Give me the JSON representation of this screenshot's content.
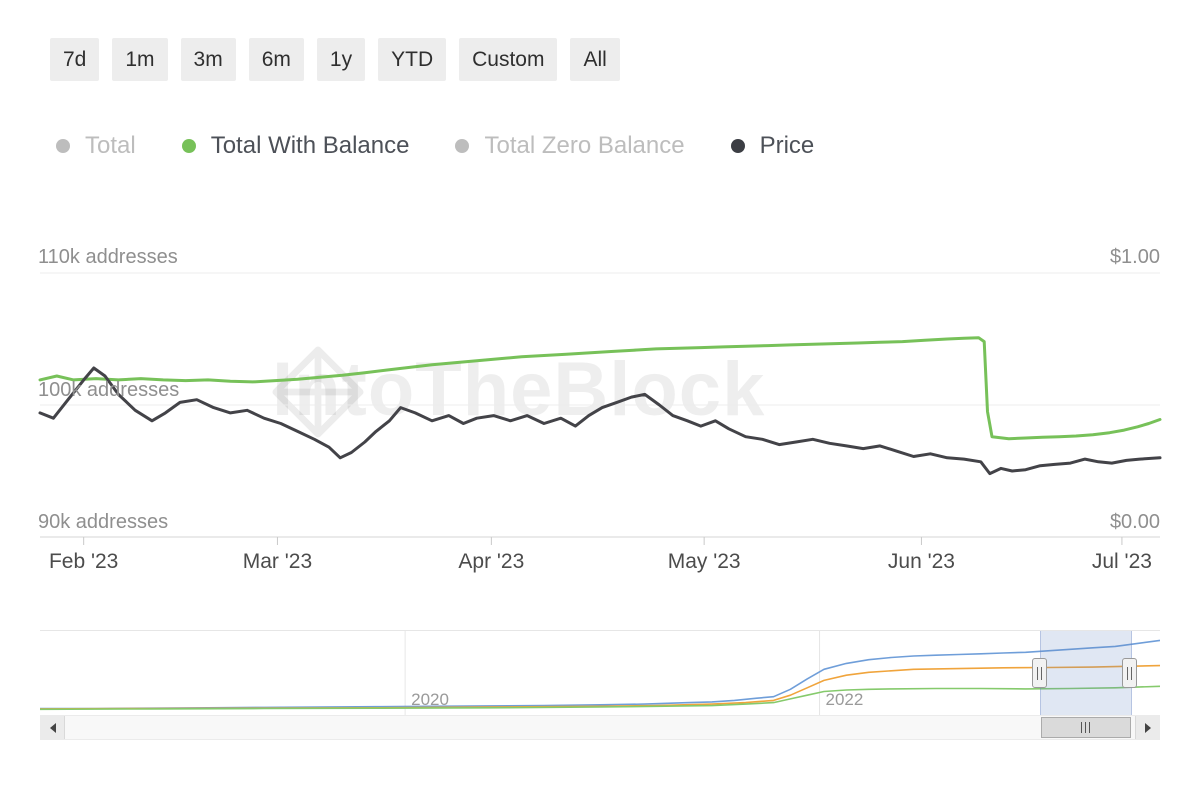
{
  "range_buttons": [
    "7d",
    "1m",
    "3m",
    "6m",
    "1y",
    "YTD",
    "Custom",
    "All"
  ],
  "legend": {
    "items": [
      {
        "label": "Total",
        "color": "#bdbdbd",
        "text_color": "#bdbdbd",
        "active": false
      },
      {
        "label": "Total With Balance",
        "color": "#77c159",
        "text_color": "#4d5158",
        "active": true
      },
      {
        "label": "Total Zero Balance",
        "color": "#bdbdbd",
        "text_color": "#bdbdbd",
        "active": false
      },
      {
        "label": "Price",
        "color": "#3c3e44",
        "text_color": "#4d5158",
        "active": true
      }
    ]
  },
  "watermark": {
    "text": "IntoTheBlock"
  },
  "chart_data": [
    {
      "type": "line",
      "x_axis": {
        "labels": [
          "Feb '23",
          "Mar '23",
          "Apr '23",
          "May '23",
          "Jun '23",
          "Jul '23"
        ],
        "tick_pos": [
          0.039,
          0.212,
          0.403,
          0.593,
          0.787,
          0.966
        ]
      },
      "y_axis_left": {
        "labels": [
          "110k addresses",
          "100k addresses",
          "90k addresses"
        ],
        "range": [
          90,
          110
        ],
        "unit": "k addresses"
      },
      "y_axis_right": {
        "labels": [
          "$1.00",
          "$0.00"
        ],
        "range": [
          0,
          1
        ],
        "unit": "USD"
      },
      "grid": "horizontal",
      "legend_position": "top",
      "series": [
        {
          "name": "Total With Balance",
          "color": "#77c159",
          "axis": "left",
          "unit": "k addresses",
          "points": [
            [
              0,
              101.9
            ],
            [
              0.015,
              102.2
            ],
            [
              0.03,
              101.9
            ],
            [
              0.05,
              102.0
            ],
            [
              0.07,
              101.9
            ],
            [
              0.09,
              102.0
            ],
            [
              0.11,
              101.9
            ],
            [
              0.13,
              101.85
            ],
            [
              0.15,
              101.9
            ],
            [
              0.17,
              101.8
            ],
            [
              0.19,
              101.75
            ],
            [
              0.21,
              101.85
            ],
            [
              0.23,
              101.95
            ],
            [
              0.25,
              102.1
            ],
            [
              0.27,
              102.25
            ],
            [
              0.29,
              102.45
            ],
            [
              0.31,
              102.65
            ],
            [
              0.33,
              102.85
            ],
            [
              0.35,
              103.05
            ],
            [
              0.37,
              103.2
            ],
            [
              0.39,
              103.35
            ],
            [
              0.41,
              103.5
            ],
            [
              0.43,
              103.65
            ],
            [
              0.45,
              103.75
            ],
            [
              0.47,
              103.85
            ],
            [
              0.49,
              103.95
            ],
            [
              0.51,
              104.05
            ],
            [
              0.53,
              104.15
            ],
            [
              0.55,
              104.25
            ],
            [
              0.57,
              104.3
            ],
            [
              0.59,
              104.35
            ],
            [
              0.61,
              104.4
            ],
            [
              0.63,
              104.45
            ],
            [
              0.65,
              104.5
            ],
            [
              0.67,
              104.55
            ],
            [
              0.69,
              104.6
            ],
            [
              0.71,
              104.65
            ],
            [
              0.73,
              104.7
            ],
            [
              0.75,
              104.75
            ],
            [
              0.77,
              104.8
            ],
            [
              0.79,
              104.9
            ],
            [
              0.81,
              105.0
            ],
            [
              0.825,
              105.05
            ],
            [
              0.838,
              105.1
            ],
            [
              0.843,
              104.8
            ],
            [
              0.846,
              99.5
            ],
            [
              0.85,
              97.6
            ],
            [
              0.865,
              97.45
            ],
            [
              0.88,
              97.5
            ],
            [
              0.895,
              97.55
            ],
            [
              0.91,
              97.6
            ],
            [
              0.925,
              97.65
            ],
            [
              0.94,
              97.75
            ],
            [
              0.955,
              97.9
            ],
            [
              0.968,
              98.1
            ],
            [
              0.98,
              98.35
            ],
            [
              0.99,
              98.6
            ],
            [
              1,
              98.9
            ]
          ]
        },
        {
          "name": "Price",
          "color": "#434348",
          "axis": "right",
          "unit": "USD",
          "points": [
            [
              0,
              0.47
            ],
            [
              0.012,
              0.45
            ],
            [
              0.025,
              0.52
            ],
            [
              0.04,
              0.6
            ],
            [
              0.048,
              0.64
            ],
            [
              0.058,
              0.61
            ],
            [
              0.07,
              0.54
            ],
            [
              0.085,
              0.48
            ],
            [
              0.1,
              0.44
            ],
            [
              0.112,
              0.47
            ],
            [
              0.125,
              0.51
            ],
            [
              0.14,
              0.52
            ],
            [
              0.155,
              0.49
            ],
            [
              0.17,
              0.47
            ],
            [
              0.185,
              0.48
            ],
            [
              0.2,
              0.45
            ],
            [
              0.215,
              0.43
            ],
            [
              0.23,
              0.4
            ],
            [
              0.245,
              0.37
            ],
            [
              0.258,
              0.34
            ],
            [
              0.268,
              0.3
            ],
            [
              0.278,
              0.32
            ],
            [
              0.29,
              0.36
            ],
            [
              0.3,
              0.4
            ],
            [
              0.312,
              0.44
            ],
            [
              0.322,
              0.49
            ],
            [
              0.335,
              0.47
            ],
            [
              0.35,
              0.44
            ],
            [
              0.365,
              0.46
            ],
            [
              0.378,
              0.43
            ],
            [
              0.39,
              0.45
            ],
            [
              0.405,
              0.46
            ],
            [
              0.42,
              0.44
            ],
            [
              0.435,
              0.46
            ],
            [
              0.45,
              0.43
            ],
            [
              0.465,
              0.45
            ],
            [
              0.478,
              0.42
            ],
            [
              0.49,
              0.46
            ],
            [
              0.502,
              0.49
            ],
            [
              0.515,
              0.51
            ],
            [
              0.528,
              0.53
            ],
            [
              0.54,
              0.54
            ],
            [
              0.553,
              0.5
            ],
            [
              0.565,
              0.46
            ],
            [
              0.578,
              0.44
            ],
            [
              0.59,
              0.42
            ],
            [
              0.603,
              0.44
            ],
            [
              0.615,
              0.41
            ],
            [
              0.63,
              0.38
            ],
            [
              0.645,
              0.37
            ],
            [
              0.66,
              0.35
            ],
            [
              0.675,
              0.36
            ],
            [
              0.69,
              0.37
            ],
            [
              0.705,
              0.355
            ],
            [
              0.72,
              0.345
            ],
            [
              0.735,
              0.335
            ],
            [
              0.75,
              0.345
            ],
            [
              0.765,
              0.325
            ],
            [
              0.78,
              0.305
            ],
            [
              0.795,
              0.315
            ],
            [
              0.81,
              0.3
            ],
            [
              0.825,
              0.295
            ],
            [
              0.84,
              0.285
            ],
            [
              0.848,
              0.24
            ],
            [
              0.858,
              0.26
            ],
            [
              0.868,
              0.25
            ],
            [
              0.88,
              0.255
            ],
            [
              0.893,
              0.27
            ],
            [
              0.906,
              0.275
            ],
            [
              0.92,
              0.28
            ],
            [
              0.933,
              0.295
            ],
            [
              0.945,
              0.285
            ],
            [
              0.957,
              0.28
            ],
            [
              0.97,
              0.29
            ],
            [
              0.982,
              0.295
            ],
            [
              1,
              0.3
            ]
          ]
        }
      ]
    },
    {
      "type": "line",
      "role": "navigator",
      "x_axis": {
        "labels": [
          {
            "label": "2020",
            "pos": 0.326
          },
          {
            "label": "2022",
            "pos": 0.696
          }
        ]
      },
      "selection": {
        "from": 0.893,
        "to": 0.973
      },
      "series": [
        {
          "name": "navigator-series-1",
          "color": "#6f9ed9",
          "points": [
            [
              0,
              0.02
            ],
            [
              0.05,
              0.02
            ],
            [
              0.1,
              0.025
            ],
            [
              0.15,
              0.03
            ],
            [
              0.2,
              0.035
            ],
            [
              0.25,
              0.04
            ],
            [
              0.3,
              0.045
            ],
            [
              0.35,
              0.05
            ],
            [
              0.4,
              0.055
            ],
            [
              0.45,
              0.06
            ],
            [
              0.5,
              0.07
            ],
            [
              0.54,
              0.08
            ],
            [
              0.58,
              0.1
            ],
            [
              0.6,
              0.11
            ],
            [
              0.62,
              0.13
            ],
            [
              0.64,
              0.16
            ],
            [
              0.655,
              0.18
            ],
            [
              0.67,
              0.28
            ],
            [
              0.685,
              0.42
            ],
            [
              0.7,
              0.55
            ],
            [
              0.72,
              0.63
            ],
            [
              0.74,
              0.68
            ],
            [
              0.76,
              0.71
            ],
            [
              0.78,
              0.73
            ],
            [
              0.8,
              0.74
            ],
            [
              0.82,
              0.75
            ],
            [
              0.84,
              0.76
            ],
            [
              0.86,
              0.77
            ],
            [
              0.88,
              0.78
            ],
            [
              0.9,
              0.8
            ],
            [
              0.92,
              0.82
            ],
            [
              0.94,
              0.84
            ],
            [
              0.96,
              0.86
            ],
            [
              0.98,
              0.9
            ],
            [
              1,
              0.94
            ]
          ]
        },
        {
          "name": "navigator-series-2",
          "color": "#f0a43c",
          "points": [
            [
              0,
              0.015
            ],
            [
              0.1,
              0.02
            ],
            [
              0.2,
              0.025
            ],
            [
              0.3,
              0.03
            ],
            [
              0.4,
              0.04
            ],
            [
              0.5,
              0.05
            ],
            [
              0.55,
              0.06
            ],
            [
              0.6,
              0.08
            ],
            [
              0.63,
              0.1
            ],
            [
              0.655,
              0.13
            ],
            [
              0.67,
              0.2
            ],
            [
              0.685,
              0.3
            ],
            [
              0.7,
              0.4
            ],
            [
              0.72,
              0.47
            ],
            [
              0.74,
              0.51
            ],
            [
              0.76,
              0.53
            ],
            [
              0.78,
              0.55
            ],
            [
              0.82,
              0.56
            ],
            [
              0.86,
              0.57
            ],
            [
              0.9,
              0.575
            ],
            [
              0.94,
              0.58
            ],
            [
              0.97,
              0.59
            ],
            [
              1,
              0.6
            ]
          ]
        },
        {
          "name": "navigator-series-3",
          "color": "#85ca6c",
          "points": [
            [
              0,
              0.01
            ],
            [
              0.1,
              0.015
            ],
            [
              0.2,
              0.02
            ],
            [
              0.3,
              0.025
            ],
            [
              0.4,
              0.03
            ],
            [
              0.5,
              0.04
            ],
            [
              0.55,
              0.05
            ],
            [
              0.6,
              0.06
            ],
            [
              0.63,
              0.08
            ],
            [
              0.655,
              0.1
            ],
            [
              0.67,
              0.15
            ],
            [
              0.685,
              0.2
            ],
            [
              0.7,
              0.25
            ],
            [
              0.72,
              0.27
            ],
            [
              0.74,
              0.28
            ],
            [
              0.76,
              0.285
            ],
            [
              0.8,
              0.29
            ],
            [
              0.84,
              0.29
            ],
            [
              0.88,
              0.285
            ],
            [
              0.92,
              0.29
            ],
            [
              0.96,
              0.3
            ],
            [
              1,
              0.32
            ]
          ]
        }
      ]
    }
  ]
}
